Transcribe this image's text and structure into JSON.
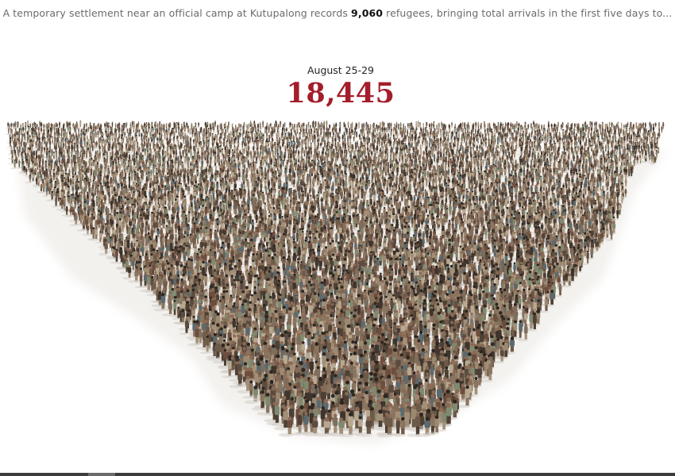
{
  "caption": {
    "prefix": "A temporary settlement near an official camp at Kutupalong records ",
    "highlight": "9,060",
    "suffix": " refugees, bringing total arrivals in the first five days to..."
  },
  "counter": {
    "period": "August 25-29",
    "total": "18,445",
    "color": "#a41d2b"
  },
  "illustration": {
    "subject": "crowd of refugees",
    "palette": [
      "#6e5a48",
      "#8a7560",
      "#4e4034",
      "#a38f77",
      "#5b6a6e",
      "#7d6f5e",
      "#3f352d",
      "#9b8a70",
      "#6d4e3e",
      "#7f8a70",
      "#b8a890",
      "#5a4c40"
    ]
  },
  "scroll": {
    "progress": 0.13
  }
}
